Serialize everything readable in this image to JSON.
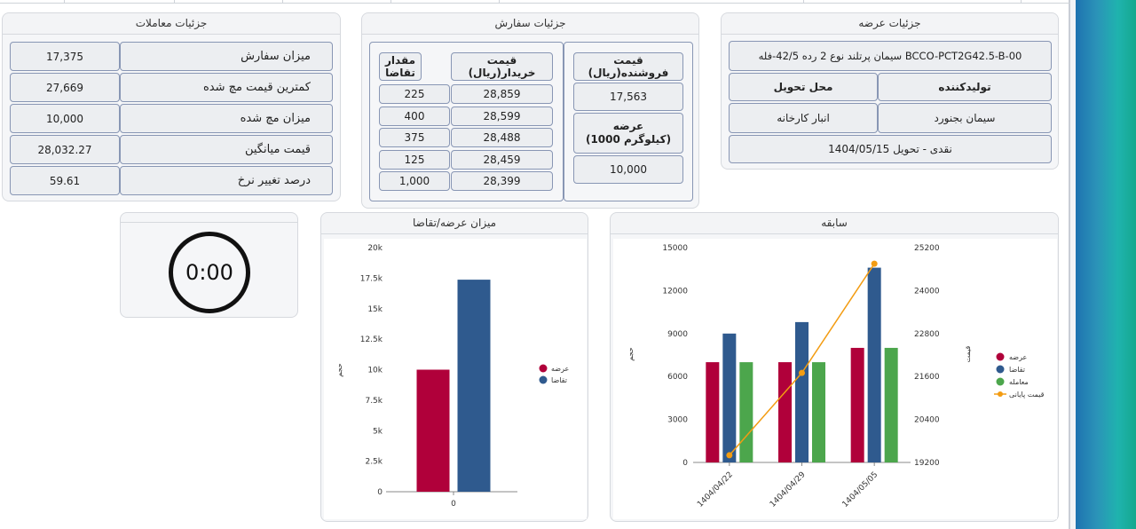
{
  "transactions": {
    "title": "جزئیات معاملات",
    "rows": [
      {
        "label": "میزان سفارش",
        "value": "17,375"
      },
      {
        "label": "کمترین قیمت مچ شده",
        "value": "27,669"
      },
      {
        "label": "میزان مچ شده",
        "value": "10,000"
      },
      {
        "label": "قیمت میانگین",
        "value": "28,032.27"
      },
      {
        "label": "درصد تغییر نرخ",
        "value": "59.61"
      }
    ]
  },
  "order": {
    "title": "جزئیات سفارش",
    "seller_price_header": "قیمت فروشنده(ریال)",
    "seller_price": "17,563",
    "supply_header": "عرضه\n(1000 کیلوگرم)",
    "supply_value": "10,000",
    "buyer_price_header": "قیمت خریدار(ریال)",
    "demand_header": "مقدار تقاضا",
    "bids": [
      {
        "price": "28,859",
        "qty": "225"
      },
      {
        "price": "28,599",
        "qty": "400"
      },
      {
        "price": "28,488",
        "qty": "375"
      },
      {
        "price": "28,459",
        "qty": "125"
      },
      {
        "price": "28,399",
        "qty": "1,000"
      }
    ]
  },
  "offer": {
    "title": "جزئیات عرضه",
    "product": "سیمان پرتلند نوع 2 رده 42/5-فله BCCO-PCT2G42.5-B-00",
    "producer_header": "تولیدکننده",
    "location_header": "محل تحویل",
    "producer": "سیمان بجنورد",
    "location": "انبار کارخانه",
    "settlement": "نقدی - تحویل 1404/05/15"
  },
  "timer": {
    "value": "0:00"
  },
  "supply_demand": {
    "title": "میزان عرضه/تقاضا"
  },
  "history": {
    "title": "سابقه"
  },
  "colors": {
    "supply": "#b0003a",
    "demand": "#2f5a8e",
    "trade": "#4ca64c",
    "final": "#f39c12"
  },
  "chart_data": [
    {
      "type": "bar",
      "title": "میزان عرضه/تقاضا",
      "categories": [
        "0"
      ],
      "series": [
        {
          "name": "عرضه",
          "values": [
            10000
          ]
        },
        {
          "name": "تقاضا",
          "values": [
            17375
          ]
        }
      ],
      "ylabel": "حجم",
      "ylim": [
        0,
        20000
      ],
      "yticks": [
        "0",
        "2.5k",
        "5k",
        "7.5k",
        "10k",
        "12.5k",
        "15k",
        "17.5k",
        "20k"
      ],
      "yticks_values": [
        0,
        2500,
        5000,
        7500,
        10000,
        12500,
        15000,
        17500,
        20000
      ],
      "legend": "right"
    },
    {
      "type": "bar",
      "title": "سابقه",
      "categories": [
        "1404/04/22",
        "1404/04/29",
        "1404/05/05"
      ],
      "series": [
        {
          "name": "عرضه",
          "values": [
            7000,
            7000,
            8000
          ]
        },
        {
          "name": "تقاضا",
          "values": [
            9000,
            9800,
            13600
          ]
        },
        {
          "name": "معامله",
          "values": [
            7000,
            7000,
            8000
          ]
        },
        {
          "name": "قیمت پایانی",
          "type": "line",
          "axis": "right",
          "values": [
            19400,
            21700,
            24750
          ]
        }
      ],
      "ylabel": "حجم",
      "ylabel_right": "قیمت",
      "ylim": [
        0,
        15000
      ],
      "yticks": [
        "0",
        "3000",
        "6000",
        "9000",
        "12000",
        "15000"
      ],
      "yticks_values": [
        0,
        3000,
        6000,
        9000,
        12000,
        15000
      ],
      "ylim_right": [
        19200,
        25200
      ],
      "yticks_right": [
        "19200",
        "20400",
        "21600",
        "22800",
        "24000",
        "25200"
      ],
      "yticks_right_values": [
        19200,
        20400,
        21600,
        22800,
        24000,
        25200
      ],
      "legend": "right"
    }
  ]
}
